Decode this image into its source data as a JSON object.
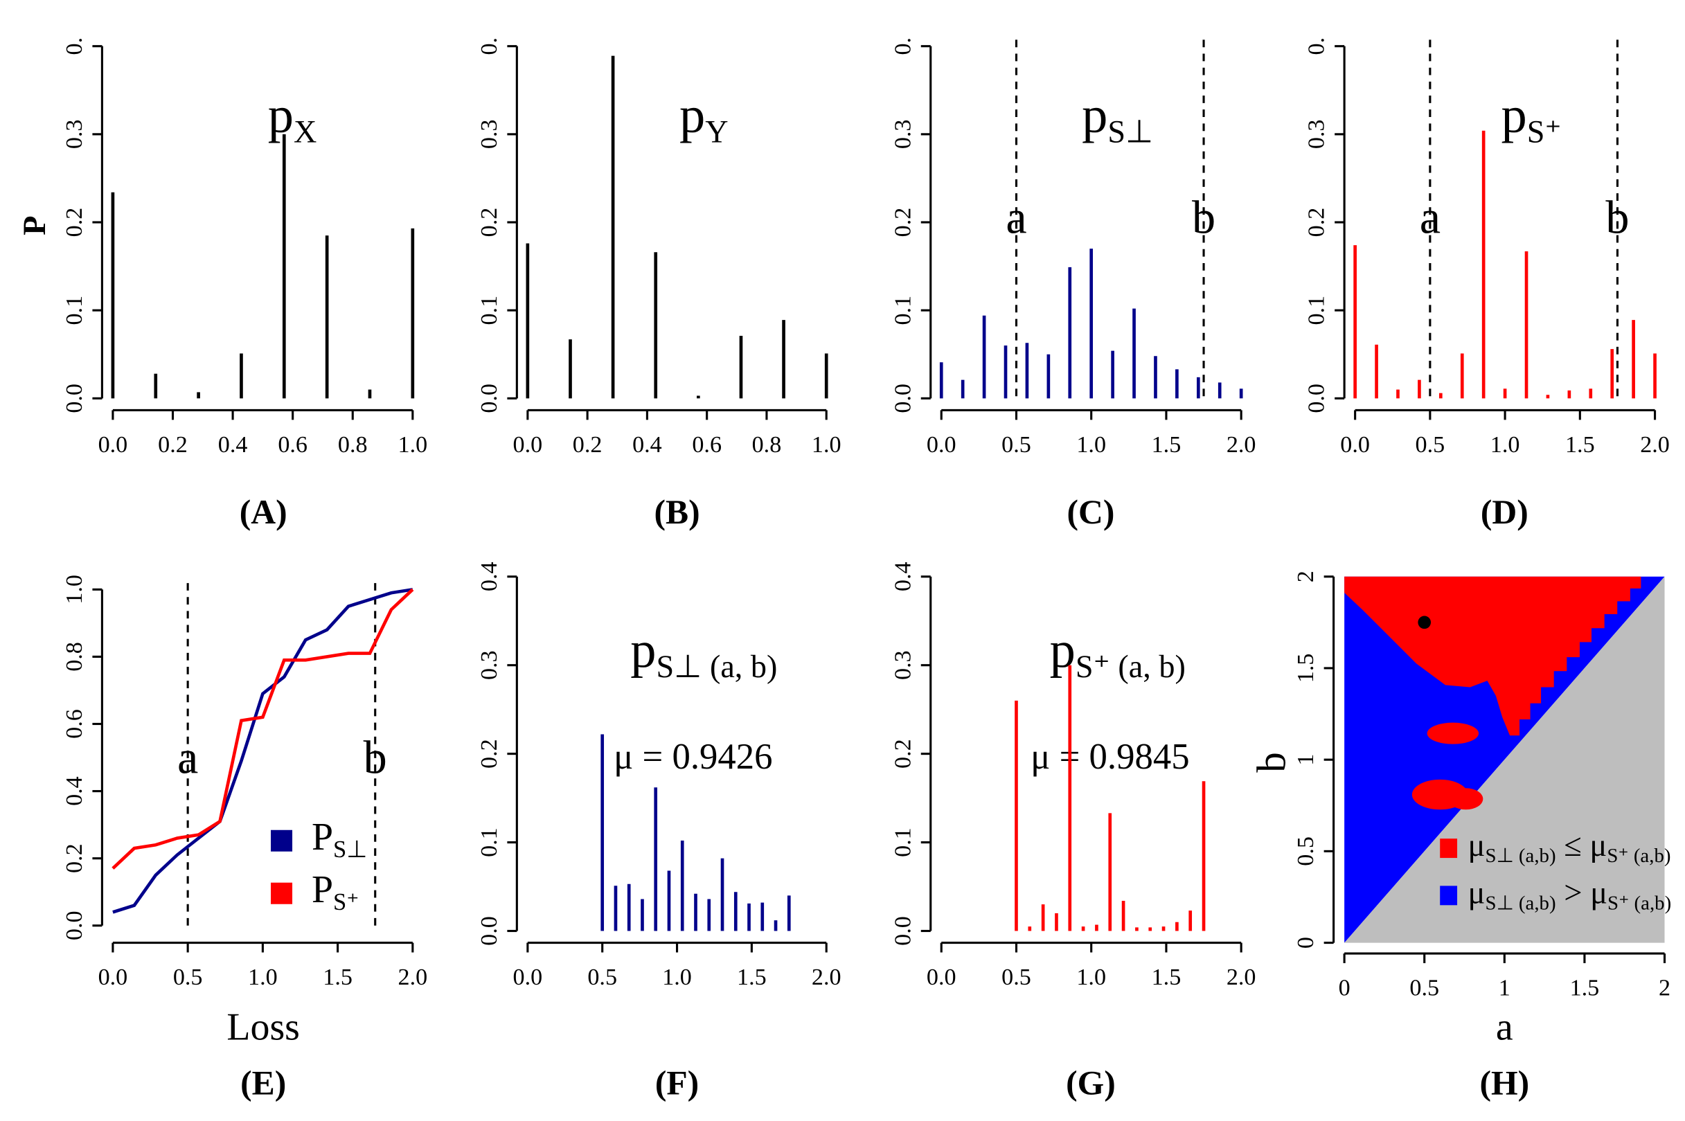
{
  "chart_data": [
    {
      "type": "stem",
      "title": "(A)",
      "ylabel": "P",
      "label": {
        "text": "p",
        "sub": "X"
      },
      "color": "#000000",
      "x": [
        0,
        0.1429,
        0.2857,
        0.4286,
        0.5714,
        0.7143,
        0.8571,
        1
      ],
      "values": [
        0.234,
        0.028,
        0.007,
        0.051,
        0.3,
        0.185,
        0.01,
        0.193
      ],
      "xlim": [
        0,
        1
      ],
      "ylim": [
        0,
        0.4
      ],
      "xticks": [
        {
          "value": 0,
          "label": "0.0"
        },
        0.2,
        0.4,
        0.6,
        0.8,
        {
          "value": 1,
          "label": "1.0"
        }
      ],
      "yticks": [
        {
          "value": 0,
          "label": "0.0"
        },
        0.1,
        0.2,
        0.3,
        {
          "value": 0.4,
          "label": "0."
        }
      ]
    },
    {
      "type": "stem",
      "title": "(B)",
      "label": {
        "text": "p",
        "sub": "Y"
      },
      "color": "#000000",
      "x": [
        0,
        0.1429,
        0.2857,
        0.4286,
        0.5714,
        0.7143,
        0.8571,
        1
      ],
      "values": [
        0.176,
        0.067,
        0.389,
        0.166,
        0.003,
        0.071,
        0.089,
        0.051
      ],
      "xlim": [
        0,
        1
      ],
      "ylim": [
        0,
        0.4
      ],
      "xticks": [
        {
          "value": 0,
          "label": "0.0"
        },
        0.2,
        0.4,
        0.6,
        0.8,
        {
          "value": 1,
          "label": "1.0"
        }
      ],
      "yticks": [
        {
          "value": 0,
          "label": "0.0"
        },
        0.1,
        0.2,
        0.3,
        {
          "value": 0.4,
          "label": "0."
        }
      ]
    },
    {
      "type": "stem",
      "title": "(C)",
      "label": {
        "text": "p",
        "sub": "S⊥"
      },
      "color": "#00008b",
      "x": [
        0,
        0.1429,
        0.2857,
        0.4286,
        0.5714,
        0.7143,
        0.8571,
        1,
        1.1429,
        1.2857,
        1.4286,
        1.5714,
        1.7143,
        1.8571,
        2
      ],
      "values": [
        0.041,
        0.021,
        0.094,
        0.06,
        0.063,
        0.05,
        0.149,
        0.17,
        0.054,
        0.102,
        0.048,
        0.033,
        0.024,
        0.018,
        0.011
      ],
      "xlim": [
        0,
        2
      ],
      "ylim": [
        0,
        0.4
      ],
      "xticks": [
        {
          "value": 0,
          "label": "0.0"
        },
        0.5,
        {
          "value": 1,
          "label": "1.0"
        },
        1.5,
        {
          "value": 2,
          "label": "2.0"
        }
      ],
      "yticks": [
        {
          "value": 0,
          "label": "0.0"
        },
        0.1,
        0.2,
        0.3,
        {
          "value": 0.4,
          "label": "0."
        }
      ],
      "vlines": [
        {
          "value": 0.5,
          "label": "a"
        },
        {
          "value": 1.75,
          "label": "b"
        }
      ]
    },
    {
      "type": "stem",
      "title": "(D)",
      "label": {
        "text": "p",
        "sub": "S⁺"
      },
      "color": "#ff0000",
      "x": [
        0,
        0.1429,
        0.2857,
        0.4286,
        0.5714,
        0.7143,
        0.8571,
        1,
        1.1429,
        1.2857,
        1.4286,
        1.5714,
        1.7143,
        1.8571,
        2
      ],
      "values": [
        0.174,
        0.061,
        0.01,
        0.021,
        0.006,
        0.051,
        0.304,
        0.011,
        0.167,
        0.004,
        0.009,
        0.011,
        0.056,
        0.089,
        0.051
      ],
      "xlim": [
        0,
        2
      ],
      "ylim": [
        0,
        0.4
      ],
      "xticks": [
        {
          "value": 0,
          "label": "0.0"
        },
        0.5,
        {
          "value": 1,
          "label": "1.0"
        },
        1.5,
        {
          "value": 2,
          "label": "2.0"
        }
      ],
      "yticks": [
        {
          "value": 0,
          "label": "0.0"
        },
        0.1,
        0.2,
        0.3,
        {
          "value": 0.4,
          "label": "0."
        }
      ],
      "vlines": [
        {
          "value": 0.5,
          "label": "a"
        },
        {
          "value": 1.75,
          "label": "b"
        }
      ]
    },
    {
      "type": "line",
      "title": "(E)",
      "xlabel": "Loss",
      "x": [
        0,
        0.1429,
        0.2857,
        0.4286,
        0.5714,
        0.7143,
        0.8571,
        1,
        1.1429,
        1.2857,
        1.4286,
        1.5714,
        1.7143,
        1.8571,
        2
      ],
      "series": [
        {
          "name": "P",
          "name_sub": "S⊥",
          "color": "#00008b",
          "values": [
            0.04,
            0.06,
            0.15,
            0.21,
            0.26,
            0.31,
            0.49,
            0.69,
            0.74,
            0.85,
            0.88,
            0.95,
            0.97,
            0.99,
            1
          ]
        },
        {
          "name": "P",
          "name_sub": "S⁺",
          "color": "#ff0000",
          "values": [
            0.17,
            0.23,
            0.24,
            0.26,
            0.27,
            0.31,
            0.61,
            0.62,
            0.79,
            0.79,
            0.8,
            0.81,
            0.81,
            0.94,
            1
          ]
        }
      ],
      "xlim": [
        0,
        2
      ],
      "ylim": [
        0,
        1
      ],
      "xticks": [
        {
          "value": 0,
          "label": "0.0"
        },
        0.5,
        {
          "value": 1,
          "label": "1.0"
        },
        1.5,
        {
          "value": 2,
          "label": "2.0"
        }
      ],
      "yticks": [
        {
          "value": 0,
          "label": "0.0"
        },
        0.2,
        0.4,
        0.6,
        0.8,
        {
          "value": 1,
          "label": "1.0"
        }
      ],
      "vlines": [
        {
          "value": 0.5,
          "label": "a"
        },
        {
          "value": 1.75,
          "label": "b"
        }
      ]
    },
    {
      "type": "stem",
      "title": "(F)",
      "label": {
        "text": "p",
        "sub": "S⊥ (a, b)"
      },
      "annotation": "μ =  0.9426",
      "color": "#00008b",
      "x": [
        0.5,
        0.5893,
        0.6786,
        0.7679,
        0.8571,
        0.9464,
        1.0357,
        1.125,
        1.2143,
        1.3036,
        1.3929,
        1.4821,
        1.5714,
        1.6607,
        1.75
      ],
      "values": [
        0.222,
        0.051,
        0.053,
        0.036,
        0.162,
        0.068,
        0.102,
        0.042,
        0.036,
        0.082,
        0.044,
        0.031,
        0.032,
        0.012,
        0.04
      ],
      "xlim": [
        0,
        2
      ],
      "ylim": [
        0,
        0.4
      ],
      "xticks": [
        {
          "value": 0,
          "label": "0.0"
        },
        0.5,
        {
          "value": 1,
          "label": "1.0"
        },
        1.5,
        {
          "value": 2,
          "label": "2.0"
        }
      ],
      "yticks": [
        {
          "value": 0,
          "label": "0.0"
        },
        0.1,
        0.2,
        0.3,
        0.4
      ]
    },
    {
      "type": "stem",
      "title": "(G)",
      "label": {
        "text": "p",
        "sub": "S⁺ (a, b)"
      },
      "annotation": "μ =  0.9845",
      "color": "#ff0000",
      "x": [
        0.5,
        0.5893,
        0.6786,
        0.7679,
        0.8571,
        0.9464,
        1.0357,
        1.125,
        1.2143,
        1.3036,
        1.3929,
        1.4821,
        1.5714,
        1.6607,
        1.75
      ],
      "values": [
        0.26,
        0.005,
        0.03,
        0.02,
        0.3,
        0.005,
        0.007,
        0.133,
        0.034,
        0.004,
        0.004,
        0.005,
        0.01,
        0.023,
        0.169
      ],
      "xlim": [
        0,
        2
      ],
      "ylim": [
        0,
        0.4
      ],
      "xticks": [
        {
          "value": 0,
          "label": "0.0"
        },
        0.5,
        {
          "value": 1,
          "label": "1.0"
        },
        1.5,
        {
          "value": 2,
          "label": "2.0"
        }
      ],
      "yticks": [
        {
          "value": 0,
          "label": "0.0"
        },
        0.1,
        0.2,
        0.3,
        0.4
      ]
    },
    {
      "type": "scatter",
      "title": "(H)",
      "xlabel": "a",
      "ylabel": "b",
      "color": "#000000",
      "x": [
        0.5
      ],
      "y": [
        1.75
      ],
      "xlim": [
        0,
        2
      ],
      "ylim": [
        0,
        2
      ],
      "xticks": [
        0,
        0.5,
        1,
        1.5,
        2
      ],
      "yticks": [
        0,
        0.5,
        1,
        1.5,
        2
      ],
      "legend": [
        {
          "color": "#ff0000",
          "parts": [
            "μ",
            "S⊥ (a,b)",
            " ≤ μ",
            "S⁺ (a,b)"
          ]
        },
        {
          "color": "#0000ff",
          "parts": [
            "μ",
            "S⊥ (a,b)",
            " > μ",
            "S⁺ (a,b)"
          ]
        }
      ]
    }
  ]
}
